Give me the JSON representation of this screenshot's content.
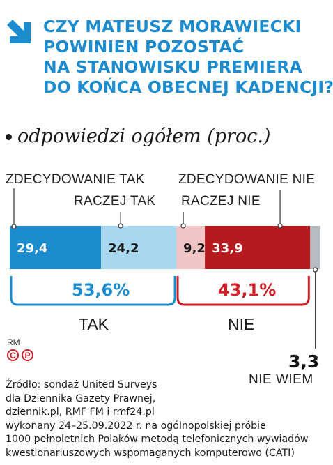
{
  "title_lines": [
    "CZY MATEUSZ MORAWIECKI",
    "POWINIEN POZOSTAĆ",
    "NA STANOWISKU PREMIERA",
    "DO KOŃCA OBECNEJ KADENCJI?"
  ],
  "subtitle": "odpowiedzi ogółem (proc.)",
  "chart_data": {
    "type": "bar",
    "orientation": "horizontal-stacked",
    "categories": [
      "ZDECYDOWANIE TAK",
      "RACZEJ TAK",
      "RACZEJ NIE",
      "ZDECYDOWANIE NIE",
      "NIE WIEM"
    ],
    "values": [
      29.4,
      24.2,
      9.2,
      33.9,
      3.3
    ],
    "value_labels": [
      "29,4",
      "24,2",
      "9,2",
      "33,9",
      "3,3"
    ],
    "colors": [
      "#1d8ccf",
      "#a7d8ef",
      "#f1c4c6",
      "#b51a1e",
      "#b7bcc2"
    ],
    "groups": [
      {
        "name": "TAK",
        "total": "53,6%",
        "color": "#1d8ccf"
      },
      {
        "name": "NIE",
        "total": "43,1%",
        "color": "#d01f26"
      }
    ]
  },
  "nie_wiem": {
    "value": "3,3",
    "label": "NIE WIEM"
  },
  "rm": {
    "label": "RM",
    "c": "C",
    "p": "P"
  },
  "source_lines": [
    "Źródło: sondaż United Surveys",
    "dla Dziennika Gazety Prawnej,",
    "dziennik.pl, RMF FM i rmf24.pl",
    "wykonany 24–25.09.2022 r. na ogólnopolskiej próbie",
    "1000 pełnoletnich Polaków metodą telefonicznych wywiadów",
    "kwestionariuszowych wspomaganych komputerowo (CATI)"
  ]
}
